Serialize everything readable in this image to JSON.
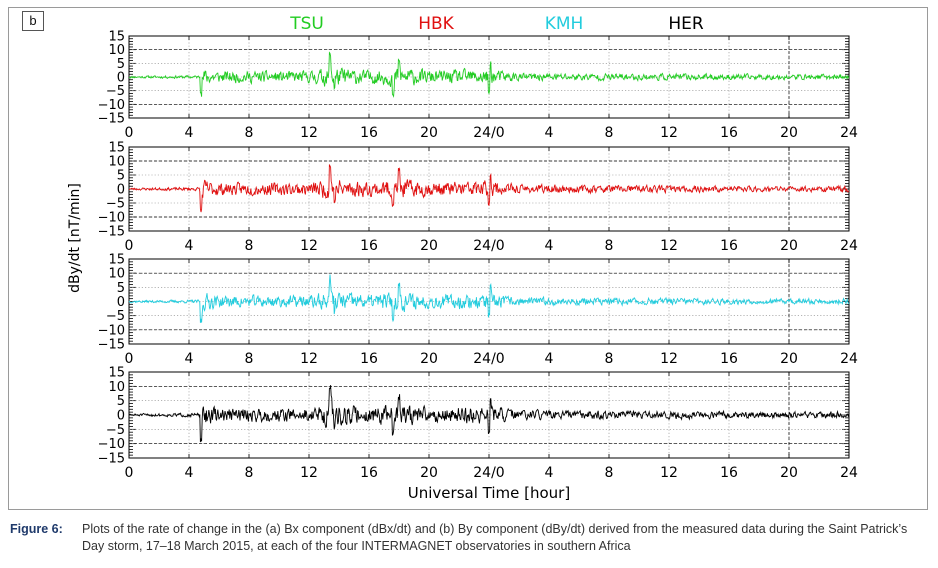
{
  "panel_label": "b",
  "caption": {
    "label": "Figure 6:",
    "text": "Plots of the rate of change in the (a) Bx component (dBx/dt) and (b) By component (dBy/dt) derived from the measured data during the Saint Patrick’s Day storm, 17–18 March 2015, at each of the four INTERMAGNET observatories in southern Africa"
  },
  "chart_data": {
    "type": "line",
    "ylabel": "dBy/dt [nT/min]",
    "xlabel": "Universal Time [hour]",
    "x_tick_labels": [
      "0",
      "4",
      "8",
      "12",
      "16",
      "20",
      "24/0",
      "4",
      "8",
      "12",
      "16",
      "20",
      "24"
    ],
    "xlim": [
      0,
      48
    ],
    "ylim": [
      -15,
      15
    ],
    "y_tick_labels": [
      "15",
      "10",
      "5",
      "0",
      "−5",
      "−10",
      "−15"
    ],
    "y_ticks": [
      15,
      10,
      5,
      0,
      -5,
      -10,
      -15
    ],
    "dashed_reference_lines": {
      "y": [
        -10,
        10
      ],
      "x": [
        44
      ]
    },
    "grid": true,
    "legend_placement": "top",
    "series": [
      {
        "name": "TSU",
        "color": "#22cc22",
        "seed": 11,
        "amp": 1.0
      },
      {
        "name": "HBK",
        "color": "#e01010",
        "seed": 23,
        "amp": 1.05
      },
      {
        "name": "KMH",
        "color": "#22ccdd",
        "seed": 37,
        "amp": 1.0
      },
      {
        "name": "HER",
        "color": "#000000",
        "seed": 51,
        "amp": 1.15
      }
    ],
    "activity_profile": [
      {
        "x": 0,
        "level": 0.35
      },
      {
        "x": 4.7,
        "level": 0.5
      },
      {
        "x": 4.8,
        "level": 2.8
      },
      {
        "x": 6,
        "level": 1.8
      },
      {
        "x": 12,
        "level": 1.8
      },
      {
        "x": 13.5,
        "level": 3.2
      },
      {
        "x": 16,
        "level": 2.0
      },
      {
        "x": 18,
        "level": 3.0
      },
      {
        "x": 20,
        "level": 2.0
      },
      {
        "x": 24,
        "level": 2.4
      },
      {
        "x": 26,
        "level": 1.2
      },
      {
        "x": 36,
        "level": 1.0
      },
      {
        "x": 44,
        "level": 0.8
      },
      {
        "x": 48,
        "level": 0.9
      }
    ],
    "spikes": [
      {
        "x": 4.8,
        "y": -7
      },
      {
        "x": 13.4,
        "y": 8
      },
      {
        "x": 13.7,
        "y": -4
      },
      {
        "x": 17.6,
        "y": -6
      },
      {
        "x": 18.0,
        "y": 6
      },
      {
        "x": 24.0,
        "y": -5
      },
      {
        "x": 24.1,
        "y": 5
      }
    ]
  }
}
